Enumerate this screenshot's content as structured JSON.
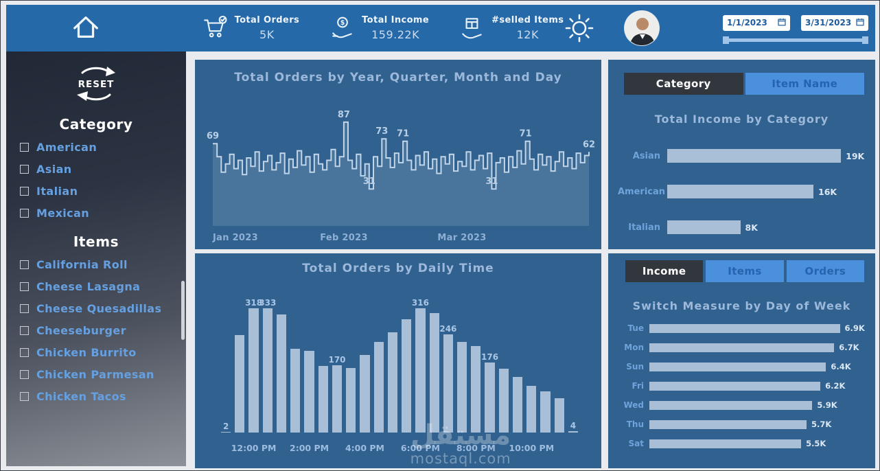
{
  "header": {
    "kpis": [
      {
        "icon": "cart-check-icon",
        "label": "Total Orders",
        "value": "5K"
      },
      {
        "icon": "money-hand-icon",
        "label": "Total Income",
        "value": "159.22K"
      },
      {
        "icon": "box-hand-icon",
        "label": "#selled Items",
        "value": "12K"
      }
    ],
    "date_start": "1/1/2023",
    "date_end": "3/31/2023"
  },
  "sidebar": {
    "reset_label": "RESET",
    "sections": [
      {
        "title": "Category",
        "items": [
          "American",
          "Asian",
          "Italian",
          "Mexican"
        ]
      },
      {
        "title": "Items",
        "items": [
          "California Roll",
          "Cheese Lasagna",
          "Cheese Quesadillas",
          "Cheeseburger",
          "Chicken Burrito",
          "Chicken Parmesan",
          "Chicken Tacos"
        ]
      }
    ]
  },
  "right_panel": {
    "category_tabs": [
      {
        "label": "Category",
        "active": true
      },
      {
        "label": "Item Name",
        "active": false
      }
    ],
    "measure_tabs": [
      {
        "label": "Income",
        "active": true
      },
      {
        "label": "Items",
        "active": false
      },
      {
        "label": "Orders",
        "active": false
      }
    ]
  },
  "watermark": {
    "arabic": "مستقل",
    "domain": "mostaql.com"
  },
  "colors": {
    "header_bg": "#2569a9",
    "panel_bg": "#30618f",
    "bar_fill": "#a9bfd8",
    "accent_blue": "#4b90dd",
    "active_tab": "#32373d",
    "sidebar_label": "#66a0e0"
  },
  "chart_data": [
    {
      "type": "line",
      "title": "Total Orders by Year, Quarter, Month and Day",
      "ylim": [
        0,
        95
      ],
      "values": [
        69,
        58,
        45,
        52,
        60,
        48,
        55,
        43,
        57,
        50,
        62,
        46,
        54,
        59,
        47,
        53,
        61,
        44,
        56,
        49,
        63,
        51,
        58,
        45,
        60,
        52,
        47,
        55,
        64,
        50,
        58,
        87,
        55,
        48,
        60,
        42,
        52,
        31,
        58,
        50,
        73,
        57,
        49,
        61,
        53,
        71,
        55,
        47,
        59,
        51,
        62,
        48,
        56,
        44,
        58,
        52,
        60,
        46,
        54,
        50,
        62,
        47,
        55,
        59,
        48,
        61,
        31,
        53,
        57,
        45,
        58,
        49,
        63,
        52,
        71,
        56,
        47,
        60,
        51,
        58,
        46,
        54,
        62,
        50,
        57,
        48,
        61,
        53,
        59,
        62
      ],
      "labeled_points": [
        {
          "index": 0,
          "label": "69"
        },
        {
          "index": 31,
          "label": "87"
        },
        {
          "index": 37,
          "label": "31"
        },
        {
          "index": 40,
          "label": "73"
        },
        {
          "index": 45,
          "label": "71"
        },
        {
          "index": 66,
          "label": "31"
        },
        {
          "index": 74,
          "label": "71"
        },
        {
          "index": 89,
          "label": "62"
        }
      ],
      "axis_ticks": [
        {
          "index": 0,
          "label": "Jan 2023"
        },
        {
          "index": 31,
          "label": "Feb 2023"
        },
        {
          "index": 59,
          "label": "Mar 2023"
        }
      ]
    },
    {
      "type": "bar",
      "title": "Total Orders by Daily Time",
      "ylim": [
        0,
        340
      ],
      "bars": [
        {
          "time": "11:00 AM",
          "value": 2
        },
        {
          "time": "11:30 AM",
          "value": 245
        },
        {
          "time": "12:00 PM",
          "value": 318
        },
        {
          "time": "12:30 PM",
          "value": 333
        },
        {
          "time": "1:00 PM",
          "value": 296
        },
        {
          "time": "1:30 PM",
          "value": 210
        },
        {
          "time": "2:00 PM",
          "value": 205
        },
        {
          "time": "2:30 PM",
          "value": 168
        },
        {
          "time": "3:00 PM",
          "value": 170
        },
        {
          "time": "3:30 PM",
          "value": 162
        },
        {
          "time": "4:00 PM",
          "value": 196
        },
        {
          "time": "4:30 PM",
          "value": 228
        },
        {
          "time": "5:00 PM",
          "value": 252
        },
        {
          "time": "5:30 PM",
          "value": 285
        },
        {
          "time": "6:00 PM",
          "value": 316
        },
        {
          "time": "6:30 PM",
          "value": 300
        },
        {
          "time": "7:00 PM",
          "value": 246
        },
        {
          "time": "7:30 PM",
          "value": 228
        },
        {
          "time": "8:00 PM",
          "value": 218
        },
        {
          "time": "8:30 PM",
          "value": 176
        },
        {
          "time": "9:00 PM",
          "value": 160
        },
        {
          "time": "9:30 PM",
          "value": 140
        },
        {
          "time": "10:00 PM",
          "value": 118
        },
        {
          "time": "10:30 PM",
          "value": 104
        },
        {
          "time": "11:00 PM",
          "value": 86
        },
        {
          "time": "11:30 PM",
          "value": 4
        }
      ],
      "labeled": [
        0,
        2,
        3,
        8,
        14,
        16,
        19,
        25
      ],
      "axis_ticks": [
        {
          "index": 2,
          "label": "12:00 PM"
        },
        {
          "index": 6,
          "label": "2:00 PM"
        },
        {
          "index": 10,
          "label": "4:00 PM"
        },
        {
          "index": 14,
          "label": "6:00 PM"
        },
        {
          "index": 18,
          "label": "8:00 PM"
        },
        {
          "index": 22,
          "label": "10:00 PM"
        }
      ]
    },
    {
      "type": "bar-horizontal",
      "title": "Total Income by Category",
      "categories": [
        "Asian",
        "American",
        "Italian"
      ],
      "values": [
        19,
        16,
        8
      ],
      "value_labels": [
        "19K",
        "16K",
        "8K"
      ],
      "xmax": 19
    },
    {
      "type": "bar-horizontal",
      "title": "Switch Measure by Day of Week",
      "categories": [
        "Tue",
        "Mon",
        "Sun",
        "Fri",
        "Wed",
        "Thu",
        "Sat"
      ],
      "values": [
        6.9,
        6.7,
        6.4,
        6.2,
        5.9,
        5.7,
        5.5
      ],
      "value_labels": [
        "6.9K",
        "6.7K",
        "6.4K",
        "6.2K",
        "5.9K",
        "5.7K",
        "5.5K"
      ],
      "xmax": 6.9
    }
  ]
}
